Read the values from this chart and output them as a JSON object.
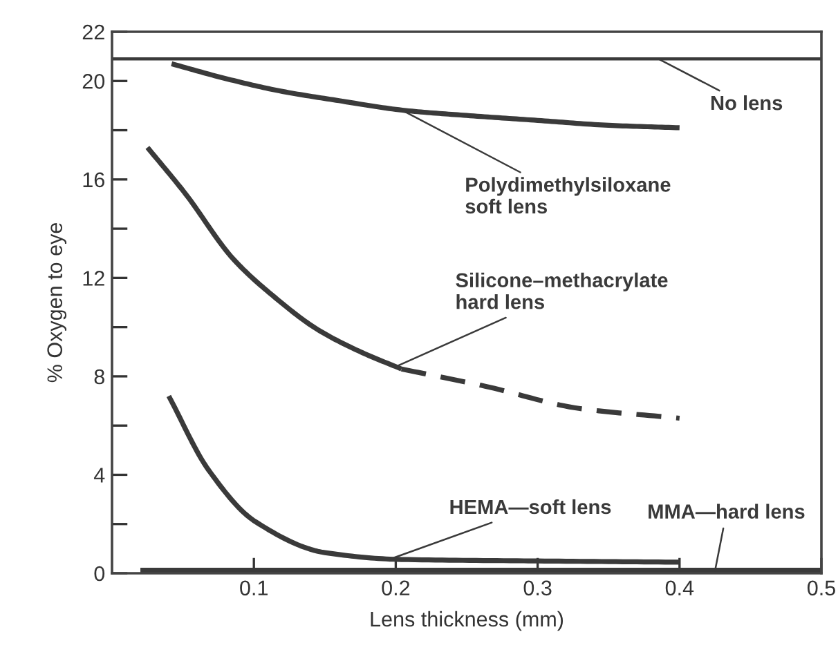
{
  "chart_data": {
    "type": "line",
    "xlabel": "Lens thickness (mm)",
    "ylabel": "% Oxygen to eye",
    "xlim": [
      0,
      0.5
    ],
    "xticks": [
      0.1,
      0.2,
      0.3,
      0.4,
      0.5
    ],
    "ylim": [
      0,
      22
    ],
    "yticks": [
      0,
      {
        "value": 2,
        "label": null
      },
      4,
      {
        "value": 6,
        "label": null
      },
      8,
      {
        "value": 10,
        "label": null
      },
      12,
      {
        "value": 14,
        "label": null
      },
      16,
      {
        "value": 18,
        "label": null
      },
      20,
      22
    ],
    "grid": false,
    "legend": false,
    "marker": "none",
    "series": [
      {
        "name": "No lens",
        "color": "#3a3a3a",
        "line_style": "solid",
        "x": [
          0,
          0.5
        ],
        "values": [
          20.9,
          20.9
        ]
      },
      {
        "name": "Polydimethylsiloxane\nsoft lens",
        "color": "#3a3a3a",
        "line_style": "solid",
        "x": [
          0.042,
          0.08,
          0.118,
          0.16,
          0.207,
          0.25,
          0.3,
          0.35,
          0.4
        ],
        "values": [
          20.7,
          20.1,
          19.6,
          19.2,
          18.8,
          18.6,
          18.4,
          18.2,
          18.1
        ]
      },
      {
        "name": "Silicone–methacrylate\nhard lens",
        "color": "#3a3a3a",
        "line_style": "solid",
        "x": [
          0.025,
          0.052,
          0.085,
          0.115,
          0.145,
          0.175,
          0.204
        ],
        "values": [
          17.3,
          15.4,
          12.8,
          11.2,
          9.9,
          9.0,
          8.3
        ]
      },
      {
        "color": "#3a3a3a",
        "line_style": "dashed",
        "x": [
          0.204,
          0.263,
          0.329,
          0.4
        ],
        "values": [
          8.3,
          7.6,
          6.7,
          6.3
        ]
      },
      {
        "name": "HEMA—soft lens",
        "color": "#3a3a3a",
        "line_style": "solid",
        "x": [
          0.04,
          0.068,
          0.101,
          0.15,
          0.204,
          0.3,
          0.4
        ],
        "values": [
          7.2,
          4.2,
          2.1,
          0.84,
          0.56,
          0.5,
          0.45
        ]
      },
      {
        "name": "MMA—hard lens",
        "color": "#3a3a3a",
        "line_style": "solid",
        "x": [
          0.02,
          0.5
        ],
        "values": [
          0.1,
          0.1
        ]
      }
    ]
  }
}
